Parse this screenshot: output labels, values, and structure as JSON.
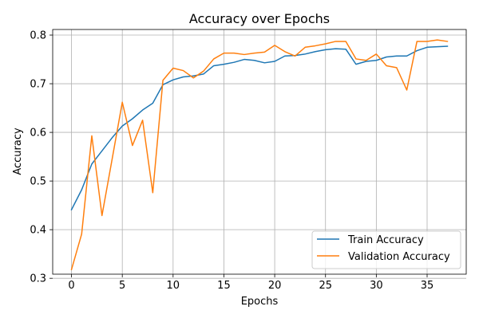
{
  "chart_data": {
    "type": "line",
    "title": "Accuracy over Epochs",
    "xlabel": "Epochs",
    "ylabel": "Accuracy",
    "xlim": [
      -1.85,
      38.85
    ],
    "ylim": [
      0.3085,
      0.8115
    ],
    "xticks": [
      0,
      5,
      10,
      15,
      20,
      25,
      30,
      35
    ],
    "yticks": [
      0.3,
      0.4,
      0.5,
      0.6,
      0.7,
      0.8
    ],
    "ytick_labels": [
      "0.3",
      "0.4",
      "0.5",
      "0.6",
      "0.7",
      "0.8"
    ],
    "grid": true,
    "legend_position": "lower-right",
    "x": [
      0,
      1,
      2,
      3,
      4,
      5,
      6,
      7,
      8,
      9,
      10,
      11,
      12,
      13,
      14,
      15,
      16,
      17,
      18,
      19,
      20,
      21,
      22,
      23,
      24,
      25,
      26,
      27,
      28,
      29,
      30,
      31,
      32,
      33,
      34,
      35,
      36,
      37
    ],
    "series": [
      {
        "name": "Train Accuracy",
        "color": "#1f77b4",
        "values": [
          0.441,
          0.482,
          0.535,
          0.562,
          0.589,
          0.613,
          0.628,
          0.646,
          0.66,
          0.698,
          0.708,
          0.714,
          0.716,
          0.72,
          0.737,
          0.74,
          0.744,
          0.75,
          0.748,
          0.743,
          0.746,
          0.757,
          0.758,
          0.761,
          0.766,
          0.77,
          0.772,
          0.771,
          0.74,
          0.746,
          0.748,
          0.755,
          0.757,
          0.757,
          0.768,
          0.775,
          0.776,
          0.777
        ]
      },
      {
        "name": "Validation Accuracy",
        "color": "#ff7f0e",
        "values": [
          0.318,
          0.391,
          0.593,
          0.429,
          0.545,
          0.662,
          0.573,
          0.625,
          0.476,
          0.707,
          0.732,
          0.727,
          0.712,
          0.726,
          0.751,
          0.763,
          0.763,
          0.76,
          0.763,
          0.765,
          0.779,
          0.766,
          0.757,
          0.775,
          0.778,
          0.782,
          0.787,
          0.787,
          0.751,
          0.748,
          0.761,
          0.737,
          0.733,
          0.687,
          0.787,
          0.787,
          0.79,
          0.787
        ]
      }
    ]
  }
}
